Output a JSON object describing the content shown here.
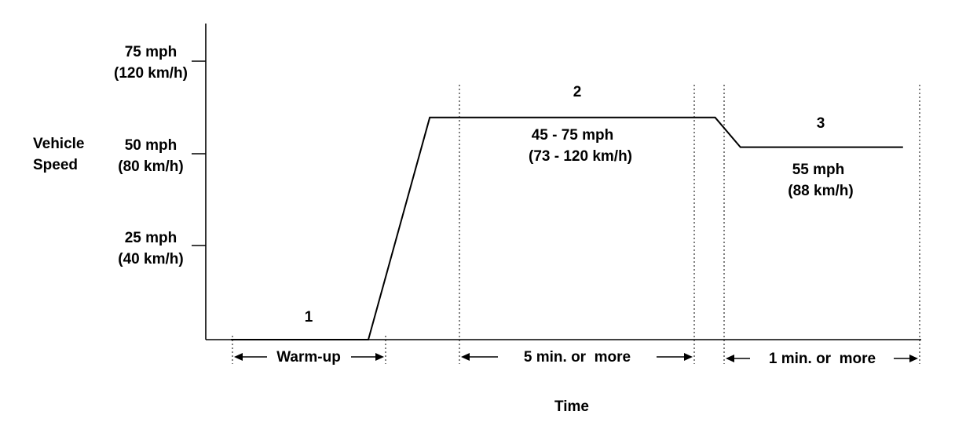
{
  "chart_data": {
    "type": "line",
    "xlabel": "Time",
    "ylabel_lines": [
      "Vehicle",
      "Speed"
    ],
    "ylim": [
      0,
      85
    ],
    "y_ticks": [
      {
        "value": 25,
        "label_mph": "25 mph",
        "label_kmh": "(40 km/h)"
      },
      {
        "value": 50,
        "label_mph": "50 mph",
        "label_kmh": "(80 km/h)"
      },
      {
        "value": 75,
        "label_mph": "75 mph",
        "label_kmh": "(120 km/h)"
      }
    ],
    "series": [
      {
        "x": [
          0.07,
          0.45,
          0.62,
          1.41,
          1.48,
          1.93
        ],
        "values": [
          0,
          0,
          60,
          60,
          52,
          52
        ]
      }
    ],
    "phases": [
      {
        "number": "1",
        "duration": "Warm-up",
        "speed_text": [
          "",
          ""
        ]
      },
      {
        "number": "2",
        "duration": "5 min. or  more",
        "speed_text": [
          "45 - 75 mph",
          "(73 - 120 km/h)"
        ]
      },
      {
        "number": "3",
        "duration": "1 min. or  more",
        "speed_text": [
          "55 mph",
          "(88 km/h)"
        ]
      }
    ]
  }
}
